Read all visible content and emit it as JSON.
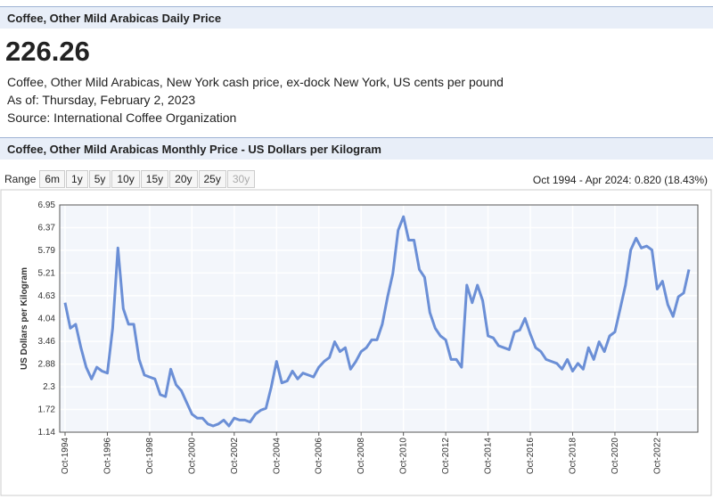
{
  "header": {
    "title": "Coffee, Other Mild Arabicas Daily Price",
    "price": "226.26",
    "description": "Coffee, Other Mild Arabicas, New York cash price, ex-dock New York, US cents per pound",
    "as_of": "As of: Thursday, February 2, 2023",
    "source": "Source: International Coffee Organization"
  },
  "range": {
    "label": "Range",
    "buttons": [
      "6m",
      "1y",
      "5y",
      "10y",
      "15y",
      "20y",
      "25y",
      "30y"
    ],
    "disabled": [
      "30y"
    ],
    "summary": "Oct 1994 - Apr 2024: 0.820 (18.43%)"
  },
  "chart_data": {
    "type": "line",
    "title": "Coffee, Other Mild Arabicas Monthly Price - US Dollars per Kilogram",
    "y_label": "US Dollars per Kilogram",
    "color": "#6b8fd6",
    "grid": true,
    "x": [
      "Oct-1994",
      "Jan-1995",
      "Apr-1995",
      "Jul-1995",
      "Oct-1995",
      "Jan-1996",
      "Apr-1996",
      "Jul-1996",
      "Oct-1996",
      "Jan-1997",
      "Apr-1997",
      "Jul-1997",
      "Oct-1997",
      "Jan-1998",
      "Apr-1998",
      "Jul-1998",
      "Oct-1998",
      "Jan-1999",
      "Apr-1999",
      "Jul-1999",
      "Oct-1999",
      "Jan-2000",
      "Apr-2000",
      "Jul-2000",
      "Oct-2000",
      "Jan-2001",
      "Apr-2001",
      "Jul-2001",
      "Oct-2001",
      "Jan-2002",
      "Apr-2002",
      "Jul-2002",
      "Oct-2002",
      "Jan-2003",
      "Apr-2003",
      "Jul-2003",
      "Oct-2003",
      "Jan-2004",
      "Apr-2004",
      "Jul-2004",
      "Oct-2004",
      "Jan-2005",
      "Apr-2005",
      "Jul-2005",
      "Oct-2005",
      "Jan-2006",
      "Apr-2006",
      "Jul-2006",
      "Oct-2006",
      "Jan-2007",
      "Apr-2007",
      "Jul-2007",
      "Oct-2007",
      "Jan-2008",
      "Apr-2008",
      "Jul-2008",
      "Oct-2008",
      "Jan-2009",
      "Apr-2009",
      "Jul-2009",
      "Oct-2009",
      "Jan-2010",
      "Apr-2010",
      "Jul-2010",
      "Oct-2010",
      "Jan-2011",
      "Apr-2011",
      "Jul-2011",
      "Oct-2011",
      "Jan-2012",
      "Apr-2012",
      "Jul-2012",
      "Oct-2012",
      "Jan-2013",
      "Apr-2013",
      "Jul-2013",
      "Oct-2013",
      "Jan-2014",
      "Apr-2014",
      "Jul-2014",
      "Oct-2014",
      "Jan-2015",
      "Apr-2015",
      "Jul-2015",
      "Oct-2015",
      "Jan-2016",
      "Apr-2016",
      "Jul-2016",
      "Oct-2016",
      "Jan-2017",
      "Apr-2017",
      "Jul-2017",
      "Oct-2017",
      "Jan-2018",
      "Apr-2018",
      "Jul-2018",
      "Oct-2018",
      "Jan-2019",
      "Apr-2019",
      "Jul-2019",
      "Oct-2019",
      "Jan-2020",
      "Apr-2020",
      "Jul-2020",
      "Oct-2020",
      "Jan-2021",
      "Apr-2021",
      "Jul-2021",
      "Oct-2021",
      "Jan-2022",
      "Apr-2022",
      "Jul-2022",
      "Oct-2022",
      "Jan-2023",
      "Apr-2023",
      "Jul-2023",
      "Oct-2023",
      "Jan-2024",
      "Apr-2024"
    ],
    "values": [
      4.45,
      3.8,
      3.9,
      3.3,
      2.8,
      2.5,
      2.8,
      2.7,
      2.65,
      3.8,
      5.85,
      4.3,
      3.9,
      3.9,
      3.0,
      2.6,
      2.55,
      2.5,
      2.1,
      2.05,
      2.75,
      2.35,
      2.2,
      1.9,
      1.6,
      1.5,
      1.5,
      1.35,
      1.3,
      1.35,
      1.45,
      1.3,
      1.5,
      1.45,
      1.45,
      1.4,
      1.6,
      1.7,
      1.75,
      2.3,
      2.95,
      2.4,
      2.45,
      2.7,
      2.5,
      2.65,
      2.6,
      2.55,
      2.8,
      2.95,
      3.05,
      3.45,
      3.2,
      3.3,
      2.75,
      2.95,
      3.2,
      3.3,
      3.5,
      3.5,
      3.9,
      4.6,
      5.2,
      6.3,
      6.65,
      6.05,
      6.05,
      5.3,
      5.1,
      4.2,
      3.8,
      3.6,
      3.5,
      3.0,
      3.0,
      2.8,
      4.9,
      4.45,
      4.9,
      4.5,
      3.6,
      3.55,
      3.35,
      3.3,
      3.25,
      3.7,
      3.75,
      4.05,
      3.65,
      3.3,
      3.2,
      3.0,
      2.95,
      2.9,
      2.75,
      3.0,
      2.7,
      2.9,
      2.75,
      3.3,
      3.0,
      3.45,
      3.2,
      3.6,
      3.7,
      4.3,
      4.9,
      5.8,
      6.1,
      5.85,
      5.9,
      5.8,
      4.8,
      5.0,
      4.4,
      4.1,
      4.6,
      4.7,
      5.3
    ],
    "ylim": [
      1.14,
      6.95
    ],
    "yticks": [
      1.14,
      1.72,
      2.3,
      2.88,
      3.46,
      4.04,
      4.63,
      5.21,
      5.79,
      6.37,
      6.95
    ],
    "xticks": [
      "Oct-1994",
      "Oct-1996",
      "Oct-1998",
      "Oct-2000",
      "Oct-2002",
      "Oct-2004",
      "Oct-2006",
      "Oct-2008",
      "Oct-2010",
      "Oct-2012",
      "Oct-2014",
      "Oct-2016",
      "Oct-2018",
      "Oct-2020",
      "Oct-2022"
    ]
  }
}
